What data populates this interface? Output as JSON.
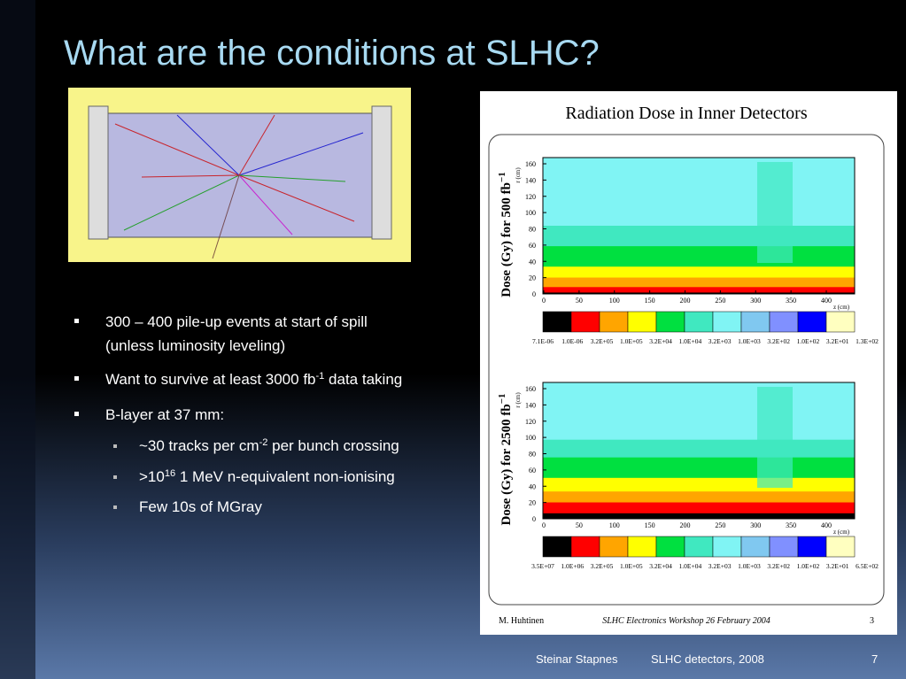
{
  "slide": {
    "title": "What are the conditions at SLHC?",
    "bullets": [
      {
        "lines": [
          "300 – 400 pile-up events at start of spill",
          "(unless luminosity leveling)"
        ]
      },
      {
        "text": "Want to survive at least 3000 fb",
        "sup": "-1",
        "after": " data taking"
      },
      {
        "text": "B-layer at 37 mm:"
      }
    ],
    "sub_bullets": [
      {
        "text": "~30 tracks per cm",
        "sup": "-2",
        "after": " per bunch crossing"
      },
      {
        "text": ">10",
        "sup": "16",
        "after": " 1 MeV n-equivalent non-ionising"
      },
      {
        "text": "Few 10s of MGray"
      }
    ],
    "figure": {
      "title": "Radiation Dose in Inner Detectors",
      "r_label": "r (cm)",
      "z_label": "z (cm)",
      "yticks": [
        0,
        20,
        40,
        60,
        80,
        100,
        120,
        140,
        160
      ],
      "xticks": [
        0,
        50,
        100,
        150,
        200,
        250,
        300,
        350,
        400
      ],
      "plots": [
        {
          "ylabel": "Dose (Gy) for 500 fb",
          "ylabel_sup": "−1",
          "scale_labels": [
            "7.1E-06",
            "1.0E-06",
            "3.2E+05",
            "1.0E+05",
            "3.2E+04",
            "1.0E+04",
            "3.2E+03",
            "1.0E+03",
            "3.2E+02",
            "1.0E+02",
            "3.2E+01",
            "1.3E+02"
          ]
        },
        {
          "ylabel": "Dose (Gy) for 2500 fb",
          "ylabel_sup": "−1",
          "scale_labels": [
            "3.5E+07",
            "1.0E+06",
            "3.2E+05",
            "1.0E+05",
            "3.2E+04",
            "1.0E+04",
            "3.2E+03",
            "1.0E+03",
            "3.2E+02",
            "1.0E+02",
            "3.2E+01",
            "6.5E+02"
          ]
        }
      ],
      "footer_left": "M. Huhtinen",
      "footer_center": "SLHC Electronics Workshop 26 February 2004",
      "footer_right": "3"
    },
    "footer": {
      "author": "Steinar Stapnes",
      "event": "SLHC detectors, 2008",
      "page": "7"
    }
  }
}
